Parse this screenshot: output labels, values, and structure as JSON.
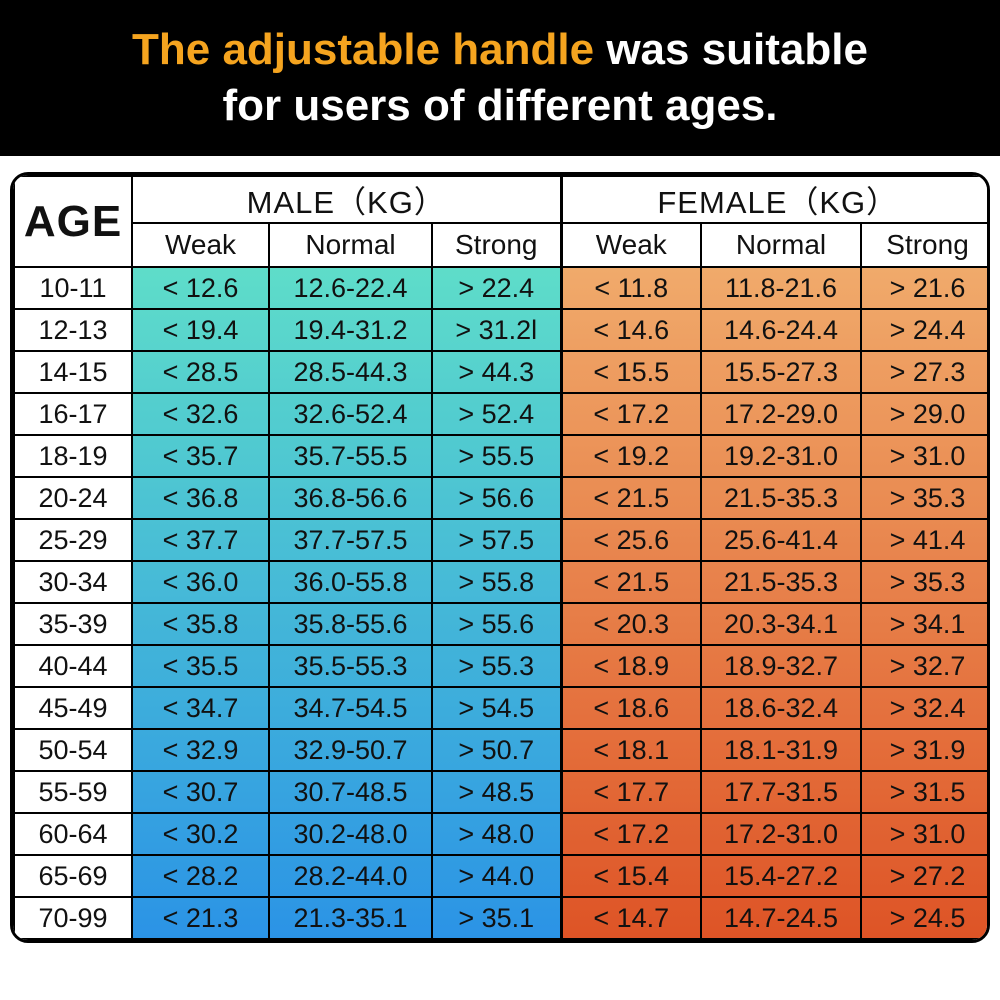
{
  "banner": {
    "highlight": "The adjustable handle",
    "rest": " was suitable",
    "line2": "for users of different ages.",
    "highlight_color": "#F5A41F",
    "text_color": "#FFFFFF",
    "bg_color": "#000000"
  },
  "table": {
    "age_header": "AGE",
    "male_header": "MALE（KG）",
    "female_header": "FEMALE（KG）",
    "sub_headers": [
      "Weak",
      "Normal",
      "Strong"
    ],
    "colors": {
      "male_top": "#5EDDC9",
      "male_bottom": "#2B93E6",
      "female_top": "#F0AA6B",
      "female_bottom": "#DE5426",
      "border": "#000000",
      "cell_text": "#111111"
    }
  },
  "chart_data": {
    "type": "table",
    "title": "The adjustable handle was suitable for users of different ages.",
    "columns": [
      "AGE",
      "MALE Weak (KG)",
      "MALE Normal (KG)",
      "MALE Strong (KG)",
      "FEMALE Weak (KG)",
      "FEMALE Normal (KG)",
      "FEMALE Strong (KG)"
    ],
    "rows": [
      [
        "10-11",
        "< 12.6",
        "12.6-22.4",
        "> 22.4",
        "< 11.8",
        "11.8-21.6",
        "> 21.6"
      ],
      [
        "12-13",
        "< 19.4",
        "19.4-31.2",
        "> 31.2l",
        "< 14.6",
        "14.6-24.4",
        "> 24.4"
      ],
      [
        "14-15",
        "< 28.5",
        "28.5-44.3",
        "> 44.3",
        "< 15.5",
        "15.5-27.3",
        "> 27.3"
      ],
      [
        "16-17",
        "< 32.6",
        "32.6-52.4",
        "> 52.4",
        "< 17.2",
        "17.2-29.0",
        "> 29.0"
      ],
      [
        "18-19",
        "< 35.7",
        "35.7-55.5",
        "> 55.5",
        "< 19.2",
        "19.2-31.0",
        "> 31.0"
      ],
      [
        "20-24",
        "< 36.8",
        "36.8-56.6",
        "> 56.6",
        "< 21.5",
        "21.5-35.3",
        "> 35.3"
      ],
      [
        "25-29",
        "< 37.7",
        "37.7-57.5",
        "> 57.5",
        "< 25.6",
        "25.6-41.4",
        "> 41.4"
      ],
      [
        "30-34",
        "< 36.0",
        "36.0-55.8",
        "> 55.8",
        "< 21.5",
        "21.5-35.3",
        "> 35.3"
      ],
      [
        "35-39",
        "< 35.8",
        "35.8-55.6",
        "> 55.6",
        "< 20.3",
        "20.3-34.1",
        "> 34.1"
      ],
      [
        "40-44",
        "< 35.5",
        "35.5-55.3",
        "> 55.3",
        "< 18.9",
        "18.9-32.7",
        "> 32.7"
      ],
      [
        "45-49",
        "< 34.7",
        "34.7-54.5",
        "> 54.5",
        "< 18.6",
        "18.6-32.4",
        "> 32.4"
      ],
      [
        "50-54",
        "< 32.9",
        "32.9-50.7",
        "> 50.7",
        "< 18.1",
        "18.1-31.9",
        "> 31.9"
      ],
      [
        "55-59",
        "< 30.7",
        "30.7-48.5",
        "> 48.5",
        "< 17.7",
        "17.7-31.5",
        "> 31.5"
      ],
      [
        "60-64",
        "< 30.2",
        "30.2-48.0",
        "> 48.0",
        "< 17.2",
        "17.2-31.0",
        "> 31.0"
      ],
      [
        "65-69",
        "< 28.2",
        "28.2-44.0",
        "> 44.0",
        "< 15.4",
        "15.4-27.2",
        "> 27.2"
      ],
      [
        "70-99",
        "< 21.3",
        "21.3-35.1",
        "> 35.1",
        "< 14.7",
        "14.7-24.5",
        "> 24.5"
      ]
    ]
  }
}
